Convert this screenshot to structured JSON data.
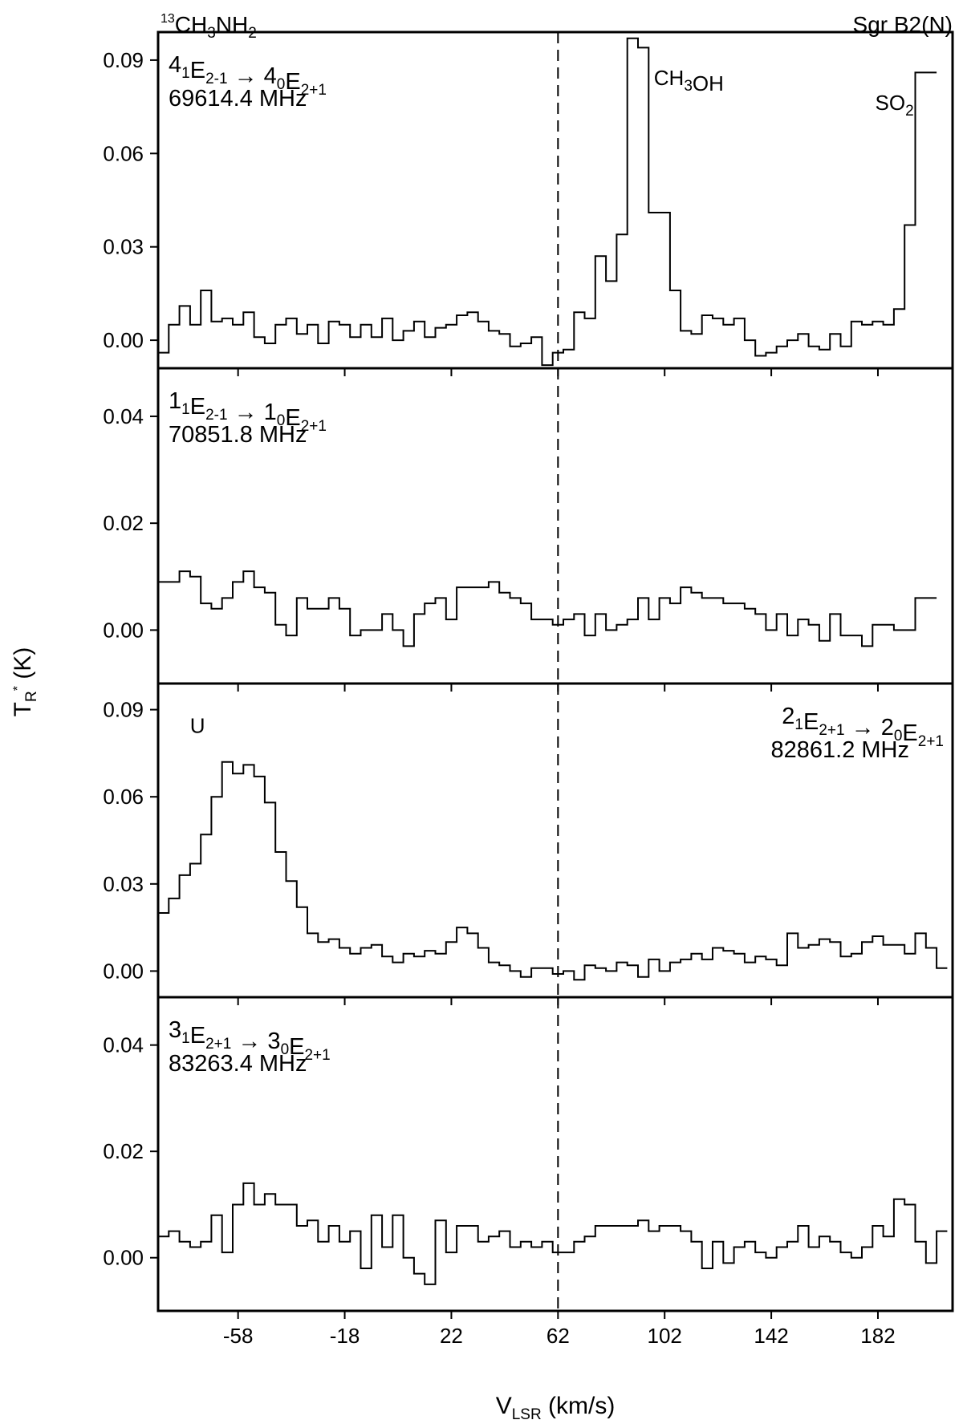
{
  "header": {
    "molecule_sup": "13",
    "molecule_parts": [
      "CH",
      "3",
      "NH",
      "2"
    ],
    "source": "Sgr B2(N)"
  },
  "axes": {
    "xlabel_main": "V",
    "xlabel_sub": "LSR",
    "xlabel_rest": " (km/s)",
    "ylabel_main": "T",
    "ylabel_sub": "R",
    "ylabel_sup": "*",
    "ylabel_rest": " (K)"
  },
  "chart_data": [
    {
      "type": "line",
      "panel": 1,
      "transition": [
        "4",
        "1",
        "E",
        "2-1",
        " → ",
        "4",
        "0",
        "E",
        "2+1"
      ],
      "frequency": "69614.4 MHz",
      "annotations": [
        {
          "text_parts": [
            "CH",
            "3",
            "OH"
          ],
          "x": 110,
          "y": 0.082
        },
        {
          "text_parts": [
            "SO",
            "2"
          ],
          "x": 193,
          "y": 0.074
        }
      ],
      "xlim": [
        -88,
        210
      ],
      "ylim": [
        -0.009,
        0.099
      ],
      "xticks": [
        -58,
        -18,
        22,
        62,
        102,
        142,
        182
      ],
      "yticks": [
        "0.00",
        "0.03",
        "0.06",
        "0.09"
      ],
      "x_start": -88,
      "x_step": 4,
      "values": [
        -0.004,
        0.005,
        0.011,
        0.005,
        0.016,
        0.006,
        0.007,
        0.005,
        0.009,
        0.001,
        -0.001,
        0.005,
        0.007,
        0.002,
        0.005,
        -0.001,
        0.006,
        0.005,
        0.001,
        0.005,
        0.001,
        0.007,
        0.0,
        0.003,
        0.006,
        0.001,
        0.004,
        0.005,
        0.008,
        0.009,
        0.006,
        0.003,
        0.002,
        -0.002,
        -0.001,
        0.001,
        -0.008,
        -0.004,
        -0.003,
        0.009,
        0.007,
        0.027,
        0.019,
        0.034,
        0.097,
        0.094,
        0.041,
        0.041,
        0.016,
        0.003,
        0.002,
        0.008,
        0.007,
        0.005,
        0.007,
        0.0,
        -0.005,
        -0.004,
        -0.002,
        0.0,
        0.002,
        -0.002,
        -0.003,
        0.002,
        -0.002,
        0.006,
        0.005,
        0.006,
        0.005,
        0.01,
        0.037,
        0.086,
        0.086
      ]
    },
    {
      "type": "line",
      "panel": 2,
      "transition": [
        "1",
        "1",
        "E",
        "2-1",
        " → ",
        "1",
        "0",
        "E",
        "2+1"
      ],
      "frequency": "70851.8 MHz",
      "annotations": [],
      "xlim": [
        -88,
        210
      ],
      "ylim": [
        -0.01,
        0.049
      ],
      "xticks": [
        -58,
        -18,
        22,
        62,
        102,
        142,
        182
      ],
      "yticks": [
        "0.00",
        "0.02",
        "0.04"
      ],
      "x_start": -88,
      "x_step": 4,
      "values": [
        0.009,
        0.009,
        0.011,
        0.01,
        0.005,
        0.004,
        0.006,
        0.009,
        0.011,
        0.008,
        0.007,
        0.001,
        -0.001,
        0.006,
        0.004,
        0.004,
        0.006,
        0.004,
        -0.001,
        0.0,
        0.0,
        0.003,
        0.0,
        -0.003,
        0.003,
        0.005,
        0.006,
        0.002,
        0.008,
        0.008,
        0.008,
        0.009,
        0.007,
        0.006,
        0.005,
        0.002,
        0.002,
        0.001,
        0.002,
        0.003,
        -0.001,
        0.003,
        0.0,
        0.001,
        0.002,
        0.006,
        0.002,
        0.006,
        0.005,
        0.008,
        0.007,
        0.006,
        0.006,
        0.005,
        0.005,
        0.004,
        0.003,
        0.0,
        0.003,
        -0.001,
        0.002,
        0.001,
        -0.002,
        0.003,
        -0.001,
        -0.001,
        -0.003,
        0.001,
        0.001,
        0.0,
        0.0,
        0.006,
        0.006
      ]
    },
    {
      "type": "line",
      "panel": 3,
      "transition": [
        "2",
        "1",
        "E",
        "2+1",
        " → ",
        "2",
        "0",
        "E",
        "2+1"
      ],
      "frequency": "82861.2 MHz",
      "annotations": [
        {
          "text_parts": [
            "U"
          ],
          "x": -64,
          "y": 0.082
        }
      ],
      "xlim": [
        -88,
        210
      ],
      "ylim": [
        -0.009,
        0.099
      ],
      "xticks": [
        -58,
        -18,
        22,
        62,
        102,
        142,
        182
      ],
      "yticks": [
        "0.00",
        "0.03",
        "0.06",
        "0.09"
      ],
      "x_start": -88,
      "x_step": 4,
      "values": [
        0.02,
        0.025,
        0.033,
        0.037,
        0.047,
        0.06,
        0.072,
        0.068,
        0.071,
        0.067,
        0.058,
        0.041,
        0.031,
        0.022,
        0.013,
        0.01,
        0.011,
        0.008,
        0.006,
        0.008,
        0.009,
        0.005,
        0.003,
        0.006,
        0.005,
        0.007,
        0.006,
        0.01,
        0.015,
        0.013,
        0.008,
        0.003,
        0.002,
        0.0,
        -0.002,
        0.001,
        0.001,
        -0.001,
        0.0,
        -0.003,
        0.002,
        0.001,
        0.0,
        0.003,
        0.002,
        -0.002,
        0.004,
        0.0,
        0.003,
        0.004,
        0.006,
        0.004,
        0.008,
        0.007,
        0.006,
        0.003,
        0.005,
        0.004,
        0.002,
        0.013,
        0.008,
        0.009,
        0.011,
        0.01,
        0.005,
        0.006,
        0.01,
        0.012,
        0.009,
        0.009,
        0.006,
        0.013,
        0.008,
        0.001
      ]
    },
    {
      "type": "line",
      "panel": 4,
      "transition": [
        "3",
        "1",
        "E",
        "2+1",
        " → ",
        "3",
        "0",
        "E",
        "2+1"
      ],
      "frequency": "83263.4 MHz",
      "annotations": [],
      "xlim": [
        -88,
        210
      ],
      "ylim": [
        -0.01,
        0.049
      ],
      "xticks": [
        -58,
        -18,
        22,
        62,
        102,
        142,
        182
      ],
      "yticks": [
        "0.00",
        "0.02",
        "0.04"
      ],
      "x_start": -88,
      "x_step": 4,
      "values": [
        0.004,
        0.005,
        0.003,
        0.002,
        0.003,
        0.008,
        0.001,
        0.01,
        0.014,
        0.01,
        0.012,
        0.01,
        0.01,
        0.006,
        0.007,
        0.003,
        0.006,
        0.003,
        0.005,
        -0.002,
        0.008,
        0.002,
        0.008,
        0.0,
        -0.003,
        -0.005,
        0.007,
        0.001,
        0.006,
        0.006,
        0.003,
        0.004,
        0.005,
        0.002,
        0.003,
        0.002,
        0.003,
        0.001,
        0.001,
        0.003,
        0.004,
        0.006,
        0.006,
        0.006,
        0.006,
        0.007,
        0.005,
        0.006,
        0.006,
        0.005,
        0.003,
        -0.002,
        0.003,
        -0.001,
        0.002,
        0.003,
        0.001,
        0.0,
        0.002,
        0.003,
        0.006,
        0.002,
        0.004,
        0.003,
        0.001,
        0.0,
        0.002,
        0.006,
        0.004,
        0.011,
        0.01,
        0.003,
        -0.001,
        0.005
      ]
    }
  ]
}
